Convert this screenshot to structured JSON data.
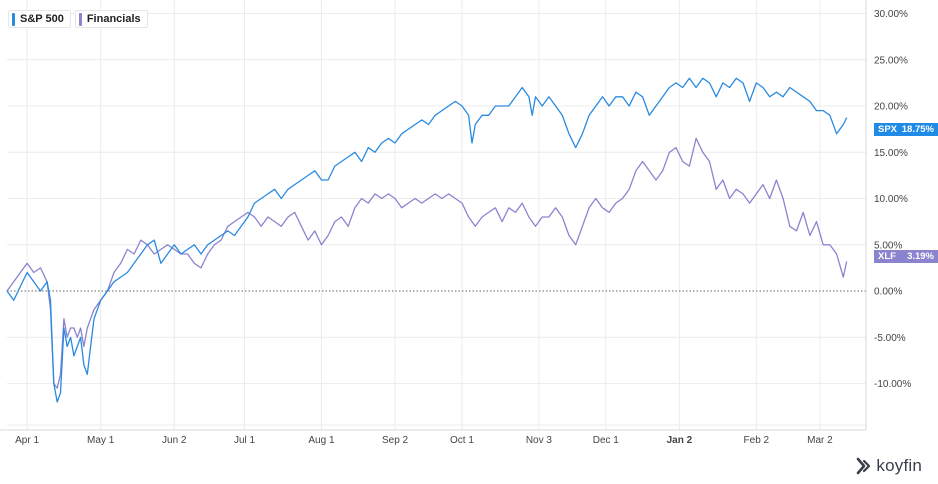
{
  "legend": [
    {
      "label": "S&P 500",
      "color": "#2a8ae0"
    },
    {
      "label": "Financials",
      "color": "#8a84cf"
    }
  ],
  "tags": [
    {
      "ticker": "SPX",
      "value": "18.75%",
      "color": "#1f8be6"
    },
    {
      "ticker": "XLF",
      "value": "3.19%",
      "color": "#8a84cf"
    }
  ],
  "brand": {
    "name": "koyfin"
  },
  "chart_data": {
    "type": "line",
    "title": "",
    "xlabel": "",
    "ylabel": "",
    "x_tick_labels": [
      "Apr 1",
      "May 1",
      "Jun 2",
      "Jul 1",
      "Aug 1",
      "Sep 2",
      "Oct 1",
      "Nov 3",
      "Dec 1",
      "Jan 2",
      "Feb 2",
      "Mar 2"
    ],
    "x_tick_positions": [
      6,
      28,
      50,
      71,
      94,
      116,
      136,
      159,
      179,
      201,
      224,
      243
    ],
    "x_range": [
      0,
      252
    ],
    "y_tick_labels": [
      "30.00%",
      "25.00%",
      "20.00%",
      "15.00%",
      "10.00%",
      "5.00%",
      "0.00%",
      "-5.00%",
      "-10.00%"
    ],
    "y_tick_values": [
      30,
      25,
      20,
      15,
      10,
      5,
      0,
      -5,
      -10
    ],
    "ylim": [
      -15,
      30
    ],
    "grid": true,
    "zero_line": "dotted",
    "legend_position": "top-left",
    "series": [
      {
        "name": "S&P 500",
        "color": "#2a8ae0",
        "points": [
          [
            0,
            0
          ],
          [
            2,
            -1
          ],
          [
            4,
            0.5
          ],
          [
            6,
            2
          ],
          [
            8,
            1
          ],
          [
            10,
            0
          ],
          [
            12,
            1
          ],
          [
            13,
            -1
          ],
          [
            14,
            -10
          ],
          [
            15,
            -12
          ],
          [
            16,
            -11
          ],
          [
            17,
            -4
          ],
          [
            18,
            -6
          ],
          [
            19,
            -5
          ],
          [
            20,
            -7
          ],
          [
            21,
            -6
          ],
          [
            22,
            -5
          ],
          [
            23,
            -8
          ],
          [
            24,
            -9
          ],
          [
            25,
            -6
          ],
          [
            26,
            -3
          ],
          [
            28,
            -1
          ],
          [
            30,
            0
          ],
          [
            32,
            1
          ],
          [
            34,
            1.5
          ],
          [
            36,
            2
          ],
          [
            38,
            3
          ],
          [
            40,
            4
          ],
          [
            42,
            5
          ],
          [
            44,
            5.5
          ],
          [
            46,
            3
          ],
          [
            48,
            4
          ],
          [
            50,
            5
          ],
          [
            52,
            4
          ],
          [
            54,
            4.5
          ],
          [
            56,
            5
          ],
          [
            58,
            4
          ],
          [
            60,
            5
          ],
          [
            62,
            5.5
          ],
          [
            64,
            6
          ],
          [
            66,
            6.5
          ],
          [
            68,
            6
          ],
          [
            70,
            7
          ],
          [
            72,
            8
          ],
          [
            74,
            9.5
          ],
          [
            76,
            10
          ],
          [
            78,
            10.5
          ],
          [
            80,
            11
          ],
          [
            82,
            10
          ],
          [
            84,
            11
          ],
          [
            86,
            11.5
          ],
          [
            88,
            12
          ],
          [
            90,
            12.5
          ],
          [
            92,
            13
          ],
          [
            94,
            12
          ],
          [
            96,
            12
          ],
          [
            98,
            13.5
          ],
          [
            100,
            14
          ],
          [
            102,
            14.5
          ],
          [
            104,
            15
          ],
          [
            106,
            14
          ],
          [
            108,
            15.5
          ],
          [
            110,
            15
          ],
          [
            112,
            16
          ],
          [
            114,
            16.5
          ],
          [
            116,
            16
          ],
          [
            118,
            17
          ],
          [
            120,
            17.5
          ],
          [
            122,
            18
          ],
          [
            124,
            18.5
          ],
          [
            126,
            18
          ],
          [
            128,
            19
          ],
          [
            130,
            19.5
          ],
          [
            132,
            20
          ],
          [
            134,
            20.5
          ],
          [
            136,
            20
          ],
          [
            138,
            19
          ],
          [
            139,
            16
          ],
          [
            140,
            18
          ],
          [
            142,
            19
          ],
          [
            144,
            19
          ],
          [
            146,
            20
          ],
          [
            148,
            20
          ],
          [
            150,
            20
          ],
          [
            152,
            21
          ],
          [
            154,
            22
          ],
          [
            156,
            21
          ],
          [
            157,
            19
          ],
          [
            158,
            21
          ],
          [
            160,
            20
          ],
          [
            162,
            21
          ],
          [
            164,
            20
          ],
          [
            166,
            19
          ],
          [
            168,
            17
          ],
          [
            170,
            15.5
          ],
          [
            172,
            17
          ],
          [
            174,
            19
          ],
          [
            176,
            20
          ],
          [
            178,
            21
          ],
          [
            180,
            20
          ],
          [
            182,
            21
          ],
          [
            184,
            21
          ],
          [
            186,
            20
          ],
          [
            188,
            21.5
          ],
          [
            190,
            21
          ],
          [
            192,
            19
          ],
          [
            194,
            20
          ],
          [
            196,
            21
          ],
          [
            198,
            22
          ],
          [
            200,
            22.5
          ],
          [
            202,
            22
          ],
          [
            204,
            23
          ],
          [
            206,
            22
          ],
          [
            208,
            23
          ],
          [
            210,
            22.5
          ],
          [
            212,
            21
          ],
          [
            214,
            22.5
          ],
          [
            216,
            22
          ],
          [
            218,
            23
          ],
          [
            220,
            22.5
          ],
          [
            222,
            20.5
          ],
          [
            224,
            22.5
          ],
          [
            226,
            22
          ],
          [
            228,
            21
          ],
          [
            230,
            21.5
          ],
          [
            232,
            21
          ],
          [
            234,
            22
          ],
          [
            236,
            21.5
          ],
          [
            238,
            21
          ],
          [
            240,
            20.5
          ],
          [
            242,
            19.5
          ],
          [
            244,
            19.5
          ],
          [
            246,
            19
          ],
          [
            248,
            17
          ],
          [
            250,
            18
          ],
          [
            251,
            18.75
          ]
        ]
      },
      {
        "name": "Financials",
        "color": "#8a84cf",
        "points": [
          [
            0,
            0
          ],
          [
            2,
            1
          ],
          [
            4,
            2
          ],
          [
            6,
            3
          ],
          [
            8,
            2
          ],
          [
            10,
            2.5
          ],
          [
            12,
            1
          ],
          [
            13,
            -2
          ],
          [
            14,
            -10
          ],
          [
            15,
            -10.5
          ],
          [
            16,
            -9
          ],
          [
            17,
            -3
          ],
          [
            18,
            -5
          ],
          [
            19,
            -4
          ],
          [
            20,
            -4
          ],
          [
            21,
            -5
          ],
          [
            22,
            -4
          ],
          [
            23,
            -6
          ],
          [
            24,
            -4
          ],
          [
            25,
            -3
          ],
          [
            26,
            -2
          ],
          [
            28,
            -1
          ],
          [
            30,
            0
          ],
          [
            32,
            2
          ],
          [
            34,
            3
          ],
          [
            36,
            4.5
          ],
          [
            38,
            4
          ],
          [
            40,
            5.5
          ],
          [
            42,
            5
          ],
          [
            44,
            4
          ],
          [
            46,
            4.5
          ],
          [
            48,
            5
          ],
          [
            50,
            4.5
          ],
          [
            52,
            4
          ],
          [
            54,
            4
          ],
          [
            56,
            3
          ],
          [
            58,
            2.5
          ],
          [
            60,
            4
          ],
          [
            62,
            5
          ],
          [
            64,
            5.5
          ],
          [
            66,
            7
          ],
          [
            68,
            7.5
          ],
          [
            70,
            8
          ],
          [
            72,
            8.5
          ],
          [
            74,
            8
          ],
          [
            76,
            7
          ],
          [
            78,
            8
          ],
          [
            80,
            7.5
          ],
          [
            82,
            7
          ],
          [
            84,
            8
          ],
          [
            86,
            8.5
          ],
          [
            88,
            7
          ],
          [
            90,
            5.5
          ],
          [
            92,
            6.5
          ],
          [
            94,
            5
          ],
          [
            96,
            6
          ],
          [
            98,
            7.5
          ],
          [
            100,
            8
          ],
          [
            102,
            7
          ],
          [
            104,
            9
          ],
          [
            106,
            10
          ],
          [
            108,
            9.5
          ],
          [
            110,
            10.5
          ],
          [
            112,
            10
          ],
          [
            114,
            10.5
          ],
          [
            116,
            10
          ],
          [
            118,
            9
          ],
          [
            120,
            9.5
          ],
          [
            122,
            10
          ],
          [
            124,
            9.5
          ],
          [
            126,
            10
          ],
          [
            128,
            10.5
          ],
          [
            130,
            10
          ],
          [
            132,
            10.5
          ],
          [
            134,
            10
          ],
          [
            136,
            9.5
          ],
          [
            138,
            8
          ],
          [
            140,
            7
          ],
          [
            142,
            8
          ],
          [
            144,
            8.5
          ],
          [
            146,
            9
          ],
          [
            148,
            7.5
          ],
          [
            150,
            9
          ],
          [
            152,
            8.5
          ],
          [
            154,
            9.5
          ],
          [
            156,
            8
          ],
          [
            158,
            7
          ],
          [
            160,
            8
          ],
          [
            162,
            8
          ],
          [
            164,
            9
          ],
          [
            166,
            8
          ],
          [
            168,
            6
          ],
          [
            170,
            5
          ],
          [
            172,
            7
          ],
          [
            174,
            9
          ],
          [
            176,
            10
          ],
          [
            178,
            9
          ],
          [
            180,
            8.5
          ],
          [
            182,
            9.5
          ],
          [
            184,
            10
          ],
          [
            186,
            11
          ],
          [
            188,
            13
          ],
          [
            190,
            14
          ],
          [
            192,
            13
          ],
          [
            194,
            12
          ],
          [
            196,
            13
          ],
          [
            198,
            15
          ],
          [
            200,
            15.5
          ],
          [
            202,
            14
          ],
          [
            204,
            13.5
          ],
          [
            206,
            16.5
          ],
          [
            208,
            15
          ],
          [
            210,
            14
          ],
          [
            212,
            11
          ],
          [
            214,
            12
          ],
          [
            216,
            10
          ],
          [
            218,
            11
          ],
          [
            220,
            10.5
          ],
          [
            222,
            9.5
          ],
          [
            224,
            10.5
          ],
          [
            226,
            11.5
          ],
          [
            228,
            10
          ],
          [
            230,
            12
          ],
          [
            232,
            10
          ],
          [
            234,
            7
          ],
          [
            236,
            6.5
          ],
          [
            238,
            8.5
          ],
          [
            240,
            6
          ],
          [
            242,
            7.5
          ],
          [
            244,
            5
          ],
          [
            246,
            5
          ],
          [
            248,
            4
          ],
          [
            250,
            1.5
          ],
          [
            251,
            3.19
          ]
        ]
      }
    ]
  }
}
